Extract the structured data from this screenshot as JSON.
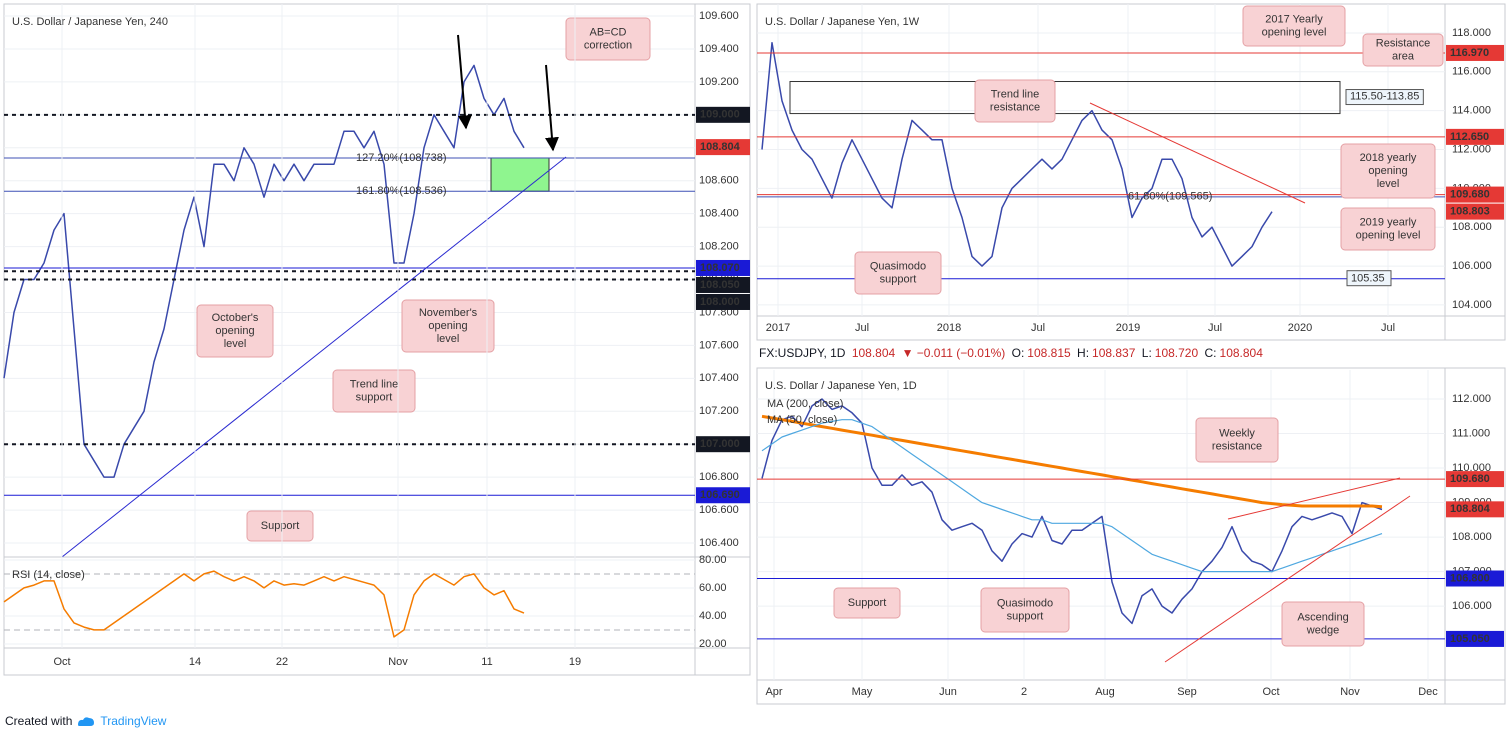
{
  "chart_data": [
    {
      "type": "line",
      "title": "U.S. Dollar / Japanese Yen, 240",
      "xlim": [
        0,
        69.1
      ],
      "ylim": [
        106.315,
        109.673
      ],
      "yticks": [
        {
          "value": 106.4,
          "label": "106.400"
        },
        {
          "value": 106.6,
          "label": "106.600"
        },
        {
          "value": 106.8,
          "label": "106.800"
        },
        {
          "value": 107.0,
          "label": "107.000"
        },
        {
          "value": 107.2,
          "label": "107.200"
        },
        {
          "value": 107.4,
          "label": "107.400"
        },
        {
          "value": 107.6,
          "label": "107.600"
        },
        {
          "value": 107.8,
          "label": "107.800"
        },
        {
          "value": 108.0,
          "label": "108.000"
        },
        {
          "value": 108.2,
          "label": "108.200"
        },
        {
          "value": 108.4,
          "label": "108.400"
        },
        {
          "value": 108.6,
          "label": "108.600"
        },
        {
          "value": 108.8,
          "label": "108.800"
        },
        {
          "value": 109.0,
          "label": "109.000"
        },
        {
          "value": 109.2,
          "label": "109.200"
        },
        {
          "value": 109.4,
          "label": "109.400"
        },
        {
          "value": 109.6,
          "label": "109.600"
        }
      ],
      "grid": true,
      "series": [
        {
          "color": "#3949ab",
          "line_width": 1.5,
          "values": [
            107.4,
            107.8,
            108.0,
            108.0,
            108.1,
            108.3,
            108.4,
            107.7,
            107.0,
            106.9,
            106.8,
            106.8,
            107.0,
            107.1,
            107.2,
            107.5,
            107.7,
            108.0,
            108.3,
            108.5,
            108.2,
            108.7,
            108.7,
            108.6,
            108.8,
            108.7,
            108.5,
            108.7,
            108.6,
            108.7,
            108.6,
            108.7,
            108.7,
            108.7,
            108.9,
            108.9,
            108.8,
            108.9,
            108.7,
            108.1,
            108.1,
            108.4,
            108.8,
            109.0,
            108.9,
            108.8,
            109.2,
            109.3,
            109.1,
            109.0,
            109.1,
            108.9,
            108.8
          ]
        }
      ],
      "levels": [
        {
          "value": 109.0,
          "label": "109.000",
          "color": "#131722",
          "style": "dashed",
          "label_style": "tag"
        },
        {
          "value": 108.804,
          "label": "108.804",
          "color": "#e53935",
          "style": "none",
          "label_style": "tag"
        },
        {
          "value": 108.738,
          "label": "127.20%(108.738)",
          "color": "#3f51b5",
          "style": "solid",
          "label_style": "inline"
        },
        {
          "value": 108.536,
          "label": "161.80%(108.536)",
          "color": "#3f51b5",
          "style": "solid",
          "label_style": "inline"
        },
        {
          "value": 108.07,
          "label": "108.070",
          "color": "#1a1ad6",
          "style": "solid",
          "label_style": "tag"
        },
        {
          "value": 108.05,
          "label": "108.050",
          "color": "#131722",
          "style": "dashed",
          "label_style": "tag"
        },
        {
          "value": 108.0,
          "label": "108.000",
          "color": "#131722",
          "style": "dashed",
          "label_style": "tag"
        },
        {
          "value": 107.0,
          "label": "107.000",
          "color": "#131722",
          "style": "dashed",
          "label_style": "tag"
        },
        {
          "value": 106.69,
          "label": "106.690",
          "color": "#1a1ad6",
          "style": "solid",
          "label_style": "tag"
        }
      ],
      "zones": [
        {
          "ylim": [
            108.536,
            108.738
          ],
          "color": "#8ff58f"
        }
      ],
      "annotations": [
        {
          "lines": [
            "AB=CD",
            "correction"
          ]
        },
        {
          "lines": [
            "October's",
            "opening",
            "level"
          ]
        },
        {
          "lines": [
            "November's",
            "opening",
            "level"
          ]
        },
        {
          "lines": [
            "Trend line",
            "support"
          ]
        },
        {
          "lines": [
            "Support"
          ]
        }
      ]
    },
    {
      "type": "line",
      "title": "RSI (14, close)",
      "xlim": [
        0,
        69.1
      ],
      "ylim": [
        17.1,
        82.1
      ],
      "xticks": [
        {
          "value": 5.8,
          "label": "Oct"
        },
        {
          "value": 19.1,
          "label": "14"
        },
        {
          "value": 27.8,
          "label": "22"
        },
        {
          "value": 39.4,
          "label": "Nov"
        },
        {
          "value": 48.3,
          "label": "11"
        },
        {
          "value": 57.1,
          "label": "19"
        }
      ],
      "yticks": [
        {
          "value": 20,
          "label": "20.00"
        },
        {
          "value": 40,
          "label": "40.00"
        },
        {
          "value": 60,
          "label": "60.00"
        },
        {
          "value": 80,
          "label": "80.00"
        }
      ],
      "grid": true,
      "guides": [
        30,
        70
      ],
      "series": [
        {
          "color": "#f57c00",
          "line_width": 1.5,
          "values": [
            50,
            55,
            60,
            62,
            65,
            65,
            45,
            35,
            32,
            30,
            30,
            35,
            40,
            45,
            50,
            55,
            60,
            65,
            70,
            65,
            70,
            72,
            68,
            65,
            68,
            65,
            60,
            65,
            62,
            63,
            62,
            65,
            68,
            65,
            68,
            66,
            64,
            62,
            55,
            25,
            30,
            55,
            65,
            70,
            66,
            62,
            68,
            70,
            60,
            55,
            58,
            45,
            42
          ]
        }
      ]
    },
    {
      "type": "line",
      "title": "U.S. Dollar / Japanese Yen, 1W",
      "xlim": [
        -0.5,
        68.3
      ],
      "ylim": [
        103.43,
        119.49
      ],
      "xticks": [
        {
          "value": 1.6,
          "label": "2017"
        },
        {
          "value": 10.0,
          "label": "Jul"
        },
        {
          "value": 18.7,
          "label": "2018"
        },
        {
          "value": 27.6,
          "label": "Jul"
        },
        {
          "value": 36.6,
          "label": "2019"
        },
        {
          "value": 45.3,
          "label": "Jul"
        },
        {
          "value": 53.8,
          "label": "2020"
        },
        {
          "value": 62.6,
          "label": "Jul"
        }
      ],
      "yticks": [
        {
          "value": 104,
          "label": "104.000"
        },
        {
          "value": 106,
          "label": "106.000"
        },
        {
          "value": 108,
          "label": "108.000"
        },
        {
          "value": 110,
          "label": "110.000"
        },
        {
          "value": 112,
          "label": "112.000"
        },
        {
          "value": 114,
          "label": "114.000"
        },
        {
          "value": 116,
          "label": "116.000"
        },
        {
          "value": 118,
          "label": "118.000"
        }
      ],
      "grid": true,
      "series": [
        {
          "color": "#3949ab",
          "line_width": 1.5,
          "values": [
            112.0,
            117.5,
            114.5,
            113.0,
            112.0,
            111.5,
            110.5,
            109.5,
            111.3,
            112.5,
            111.5,
            110.5,
            109.5,
            109.0,
            111.5,
            113.5,
            113.0,
            112.5,
            112.5,
            110.0,
            108.5,
            106.5,
            106.0,
            106.5,
            109.0,
            110.0,
            110.5,
            111.0,
            111.5,
            111.0,
            111.5,
            112.5,
            113.5,
            114.0,
            113.0,
            112.5,
            111.0,
            108.5,
            109.5,
            110.0,
            111.5,
            111.5,
            110.5,
            108.5,
            107.5,
            108.0,
            107.0,
            106.0,
            106.5,
            107.0,
            108.0,
            108.8
          ]
        }
      ],
      "levels": [
        {
          "value": 116.97,
          "label": "116.970",
          "color": "#e53935",
          "style": "solid",
          "label_style": "tag"
        },
        {
          "value": 112.65,
          "label": "112.650",
          "color": "#e53935",
          "style": "solid",
          "label_style": "tag"
        },
        {
          "value": 109.68,
          "label": "109.680",
          "color": "#e53935",
          "style": "solid",
          "label_style": "tag"
        },
        {
          "value": 109.565,
          "label": "61.80%(109.565)",
          "color": "#3f51b5",
          "style": "solid",
          "label_style": "inline"
        },
        {
          "value": 108.803,
          "label": "108.803",
          "color": "#e53935",
          "style": "none",
          "label_style": "tag"
        },
        {
          "value": 105.35,
          "label": "105.35",
          "color": "#1a1ad6",
          "style": "solid",
          "label_style": "box"
        }
      ],
      "zones": [
        {
          "ylim": [
            113.85,
            115.5
          ],
          "label": "115.50-113.85",
          "color": "none"
        }
      ],
      "annotations": [
        {
          "lines": [
            "2017 Yearly",
            "opening level"
          ]
        },
        {
          "lines": [
            "Resistance",
            "area"
          ]
        },
        {
          "lines": [
            "Trend line",
            "resistance"
          ]
        },
        {
          "lines": [
            "2018 yearly",
            "opening",
            "level"
          ]
        },
        {
          "lines": [
            "2019 yearly",
            "opening level"
          ]
        },
        {
          "lines": [
            "Quasimodo",
            "support"
          ]
        }
      ]
    },
    {
      "type": "line",
      "title": "U.S. Dollar / Japanese Yen, 1D",
      "xlim": [
        -0.5,
        68.3
      ],
      "ylim": [
        103.86,
        112.84
      ],
      "xticks": [
        {
          "value": 1.2,
          "label": "Apr"
        },
        {
          "value": 10.0,
          "label": "May"
        },
        {
          "value": 18.6,
          "label": "Jun"
        },
        {
          "value": 26.2,
          "label": "2"
        },
        {
          "value": 34.3,
          "label": "Aug"
        },
        {
          "value": 42.5,
          "label": "Sep"
        },
        {
          "value": 50.9,
          "label": "Oct"
        },
        {
          "value": 58.8,
          "label": "Nov"
        },
        {
          "value": 66.6,
          "label": "Dec"
        }
      ],
      "yticks": [
        {
          "value": 106,
          "label": "106.000"
        },
        {
          "value": 107,
          "label": "107.000"
        },
        {
          "value": 108,
          "label": "108.000"
        },
        {
          "value": 109,
          "label": "109.000"
        },
        {
          "value": 110,
          "label": "110.000"
        },
        {
          "value": 111,
          "label": "111.000"
        },
        {
          "value": 112,
          "label": "112.000"
        }
      ],
      "grid": true,
      "series": [
        {
          "color": "#3949ab",
          "line_width": 1.5,
          "values": [
            109.7,
            110.8,
            111.4,
            111.5,
            111.2,
            111.8,
            112.0,
            111.7,
            111.8,
            111.6,
            111.3,
            110.0,
            109.5,
            109.5,
            109.8,
            109.5,
            109.6,
            109.3,
            108.5,
            108.2,
            108.3,
            108.4,
            108.2,
            107.6,
            107.3,
            107.8,
            108.1,
            108.0,
            108.6,
            107.9,
            107.8,
            108.2,
            108.2,
            108.4,
            108.6,
            106.7,
            105.8,
            105.5,
            106.3,
            106.5,
            106.0,
            105.8,
            106.2,
            106.5,
            107.0,
            107.3,
            107.7,
            108.3,
            107.6,
            107.3,
            107.2,
            107.0,
            107.6,
            108.3,
            108.6,
            108.5,
            108.6,
            108.7,
            108.6,
            108.1,
            109.0,
            108.9,
            108.8
          ]
        },
        {
          "name": "MA (200, close)",
          "color": "#f57c00",
          "line_width": 3,
          "values": [
            111.5,
            111.45,
            111.4,
            111.35,
            111.3,
            111.25,
            111.2,
            111.15,
            111.1,
            111.05,
            111.0,
            110.95,
            110.9,
            110.85,
            110.8,
            110.75,
            110.7,
            110.65,
            110.6,
            110.55,
            110.5,
            110.45,
            110.4,
            110.35,
            110.3,
            110.25,
            110.2,
            110.15,
            110.1,
            110.05,
            110.0,
            109.95,
            109.9,
            109.85,
            109.8,
            109.75,
            109.7,
            109.65,
            109.6,
            109.55,
            109.5,
            109.45,
            109.4,
            109.35,
            109.3,
            109.25,
            109.2,
            109.15,
            109.1,
            109.05,
            109.0,
            108.97,
            108.94,
            108.92,
            108.9,
            108.9,
            108.9,
            108.9,
            108.9,
            108.9,
            108.9,
            108.9,
            108.88
          ]
        },
        {
          "name": "MA (50, close)",
          "color": "#4fa8e0",
          "line_width": 1.2,
          "values": [
            110.5,
            110.7,
            110.9,
            111.0,
            111.1,
            111.2,
            111.3,
            111.35,
            111.4,
            111.4,
            111.3,
            111.2,
            111.0,
            110.8,
            110.6,
            110.4,
            110.2,
            110.0,
            109.8,
            109.6,
            109.4,
            109.2,
            109.0,
            108.9,
            108.8,
            108.7,
            108.6,
            108.5,
            108.5,
            108.4,
            108.4,
            108.4,
            108.4,
            108.4,
            108.4,
            108.3,
            108.1,
            107.9,
            107.7,
            107.5,
            107.4,
            107.3,
            107.2,
            107.1,
            107.0,
            107.0,
            107.0,
            107.0,
            107.0,
            107.0,
            107.0,
            107.0,
            107.1,
            107.2,
            107.3,
            107.4,
            107.5,
            107.6,
            107.7,
            107.8,
            107.9,
            108.0,
            108.1
          ]
        }
      ],
      "levels": [
        {
          "value": 109.68,
          "label": "109.680",
          "color": "#e53935",
          "style": "solid",
          "label_style": "tag"
        },
        {
          "value": 108.804,
          "label": "108.804",
          "color": "#e53935",
          "style": "none",
          "label_style": "tag"
        },
        {
          "value": 106.8,
          "label": "106.800",
          "color": "#1a1ad6",
          "style": "solid",
          "label_style": "tag"
        },
        {
          "value": 105.05,
          "label": "105.050",
          "color": "#1a1ad6",
          "style": "solid",
          "label_style": "tag"
        }
      ],
      "annotations": [
        {
          "lines": [
            "Weekly",
            "resistance"
          ]
        },
        {
          "lines": [
            "Support"
          ]
        },
        {
          "lines": [
            "Quasimodo",
            "support"
          ]
        },
        {
          "lines": [
            "Ascending",
            "wedge"
          ]
        }
      ]
    }
  ],
  "info": {
    "symbol": "FX:USDJPY, 1D",
    "last": "108.804",
    "change": "▼ −0.011 (−0.01%)",
    "ohlc": [
      {
        "key": "O:",
        "value": "108.815"
      },
      {
        "key": "H:",
        "value": "108.837"
      },
      {
        "key": "L:",
        "value": "108.720"
      },
      {
        "key": "C:",
        "value": "108.804"
      }
    ]
  },
  "footer": {
    "text": "Created with",
    "brand": "TradingView"
  }
}
